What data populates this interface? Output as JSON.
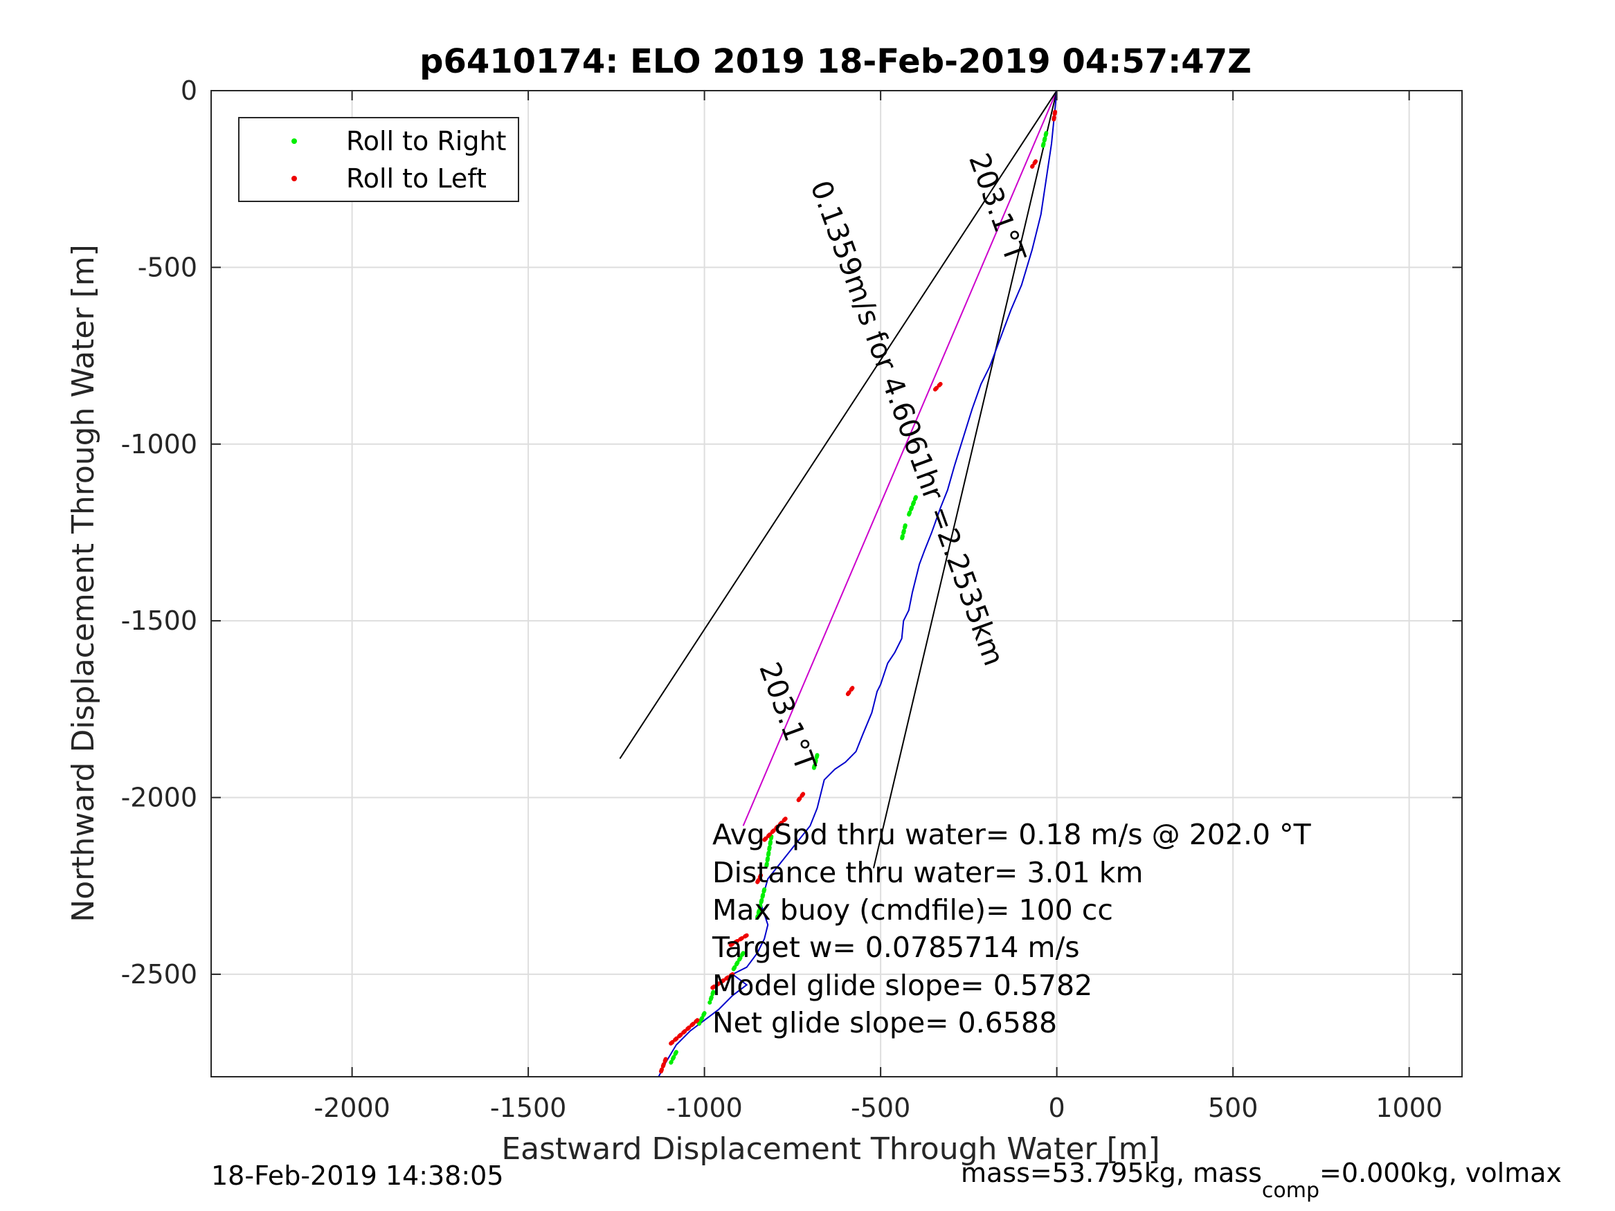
{
  "chart_data": {
    "type": "scatter",
    "title": "p6410174: ELO 2019 18-Feb-2019 04:57:47Z",
    "xlabel": "Eastward Displacement Through Water [m]",
    "ylabel": "Northward Displacement Through Water [m]",
    "xlim": [
      -2400,
      1150
    ],
    "ylim": [
      -2790,
      0
    ],
    "xticks": [
      -2000,
      -1500,
      -1000,
      -500,
      0,
      500,
      1000
    ],
    "xtick_labels": [
      "-2000",
      "-1500",
      "-1000",
      "-500",
      "0",
      "500",
      "1000"
    ],
    "yticks": [
      0,
      -500,
      -1000,
      -1500,
      -2000,
      -2500
    ],
    "ytick_labels": [
      "0",
      "-500",
      "-1000",
      "-1500",
      "-2000",
      "-2500"
    ],
    "grid": true,
    "legend_position": "top-left",
    "legend": [
      {
        "label": "Roll to Right",
        "color": "#00ee00"
      },
      {
        "label": "Roll to Left",
        "color": "#ee0000"
      }
    ],
    "track": {
      "color": "#0000cc",
      "x": [
        0,
        -5,
        -15,
        -30,
        -45,
        -70,
        -100,
        -130,
        -160,
        -190,
        -215,
        -240,
        -265,
        -290,
        -310,
        -330,
        -355,
        -375,
        -390,
        -400,
        -410,
        -420,
        -435,
        -440,
        -460,
        -480,
        -500,
        -510,
        -525,
        -550,
        -570,
        -600,
        -630,
        -660,
        -670,
        -680,
        -700,
        -740,
        -780,
        -820,
        -840,
        -820,
        -830,
        -850,
        -880,
        -920,
        -880,
        -920,
        -960,
        -1000,
        -1040,
        -1080,
        -1110,
        -1130
      ],
      "y": [
        0,
        -50,
        -150,
        -250,
        -350,
        -450,
        -550,
        -620,
        -700,
        -780,
        -830,
        -900,
        -980,
        -1060,
        -1130,
        -1180,
        -1250,
        -1300,
        -1340,
        -1380,
        -1420,
        -1470,
        -1500,
        -1550,
        -1590,
        -1620,
        -1680,
        -1700,
        -1760,
        -1820,
        -1870,
        -1900,
        -1920,
        -1950,
        -1990,
        -2030,
        -2080,
        -2130,
        -2180,
        -2230,
        -2300,
        -2360,
        -2400,
        -2440,
        -2480,
        -2500,
        -2530,
        -2560,
        -2600,
        -2630,
        -2660,
        -2700,
        -2750,
        -2790
      ]
    },
    "roll_right_segments": [
      {
        "x": [
          -30,
          -40
        ],
        "y": [
          -120,
          -160
        ]
      },
      {
        "x": [
          -400,
          -420
        ],
        "y": [
          -1150,
          -1200
        ]
      },
      {
        "x": [
          -430,
          -440
        ],
        "y": [
          -1230,
          -1270
        ]
      },
      {
        "x": [
          -680,
          -690
        ],
        "y": [
          -1880,
          -1920
        ]
      },
      {
        "x": [
          -810,
          -825
        ],
        "y": [
          -2110,
          -2200
        ]
      },
      {
        "x": [
          -830,
          -850
        ],
        "y": [
          -2260,
          -2340
        ]
      },
      {
        "x": [
          -890,
          -920
        ],
        "y": [
          -2440,
          -2490
        ]
      },
      {
        "x": [
          -975,
          -985
        ],
        "y": [
          -2550,
          -2580
        ]
      },
      {
        "x": [
          -1000,
          -1015
        ],
        "y": [
          -2610,
          -2640
        ]
      },
      {
        "x": [
          -1080,
          -1095
        ],
        "y": [
          -2720,
          -2750
        ]
      }
    ],
    "roll_left_segments": [
      {
        "x": [
          -5,
          -10
        ],
        "y": [
          -60,
          -90
        ]
      },
      {
        "x": [
          -60,
          -70
        ],
        "y": [
          -200,
          -215
        ]
      },
      {
        "x": [
          -330,
          -350
        ],
        "y": [
          -830,
          -850
        ]
      },
      {
        "x": [
          -580,
          -595
        ],
        "y": [
          -1690,
          -1710
        ]
      },
      {
        "x": [
          -720,
          -735
        ],
        "y": [
          -1990,
          -2010
        ]
      },
      {
        "x": [
          -770,
          -830
        ],
        "y": [
          -2060,
          -2120
        ]
      },
      {
        "x": [
          -840,
          -850
        ],
        "y": [
          -2220,
          -2240
        ]
      },
      {
        "x": [
          -880,
          -930
        ],
        "y": [
          -2390,
          -2420
        ]
      },
      {
        "x": [
          -920,
          -980
        ],
        "y": [
          -2500,
          -2540
        ]
      },
      {
        "x": [
          -1020,
          -1100
        ],
        "y": [
          -2630,
          -2700
        ]
      },
      {
        "x": [
          -1110,
          -1125
        ],
        "y": [
          -2740,
          -2780
        ]
      }
    ],
    "reference_lines": [
      {
        "color": "#cc00cc",
        "x": [
          0,
          -890
        ],
        "y": [
          0,
          -2080
        ]
      },
      {
        "color": "#000000",
        "x": [
          0,
          -1240
        ],
        "y": [
          0,
          -1890
        ]
      },
      {
        "color": "#000000",
        "x": [
          0,
          -520
        ],
        "y": [
          0,
          -2200
        ]
      }
    ],
    "rotated_labels": [
      {
        "text": "203.1°T",
        "x": -195,
        "y": -340,
        "angle": 70
      },
      {
        "text": "0.1359m/s for 4.6061hr =2.2535km",
        "x": -450,
        "y": -950,
        "angle": 70
      },
      {
        "text": "203.1°T",
        "x": -790,
        "y": -1780,
        "angle": 70
      }
    ],
    "annotations": [
      "Avg Spd thru water=  0.18 m/s @ 202.0 °T",
      "Distance thru water=  3.01 km",
      "Max buoy (cmdfile)= 100 cc",
      "Target w= 0.0785714 m/s",
      "Model glide slope= 0.5782",
      "Net glide slope= 0.6588"
    ],
    "footer_left": "18-Feb-2019 14:38:05",
    "footer_right_prefix": "mass=53.795kg, mass",
    "footer_right_sub": "comp",
    "footer_right_suffix": "=0.000kg, volmax"
  }
}
